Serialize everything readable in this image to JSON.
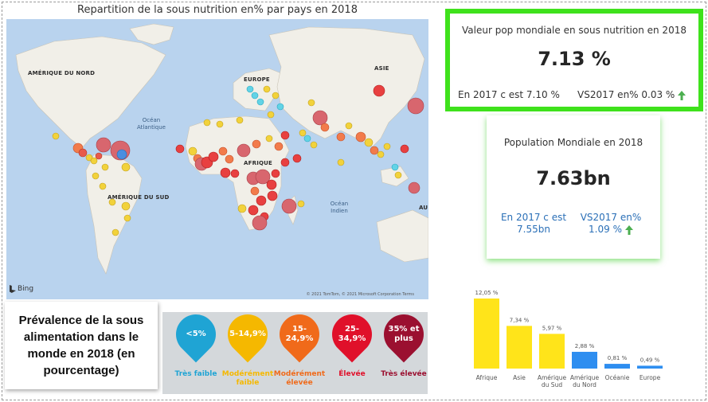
{
  "map": {
    "title": "Repartition de la sous nutrition en% par pays en 2018",
    "labels": {
      "north_america": "AMÉRIQUE DU NORD",
      "europe": "EUROPE",
      "asia": "ASIE",
      "africa": "AFRIQUE",
      "south_america": "AMÉRIQUE DU SUD",
      "atlantic": "Océan Atlantique",
      "indian": "Océan Indien",
      "au": "AU"
    },
    "bing": "Bing",
    "copyright": "© 2021 TomTom, © 2021 Microsoft Corporation Terms"
  },
  "legend": {
    "caption": "Prévalence de la sous alimentation dans le monde en 2018 (en pourcentage)",
    "items": [
      {
        "range": "<5%",
        "label": "Très faible",
        "color": "#1fa4d4"
      },
      {
        "range": "5-14,9%",
        "label": "Modérément faible",
        "color": "#f5b800"
      },
      {
        "range": "15-24,9%",
        "label": "Modérément élevée",
        "color": "#f06a1a"
      },
      {
        "range": "25-34,9%",
        "label": "Élevée",
        "color": "#e0102a"
      },
      {
        "range": "35% et plus",
        "label": "Très élevée",
        "color": "#9b1030"
      }
    ]
  },
  "kpi_undernutrition": {
    "title": "Valeur pop mondiale en sous nutrition en 2018",
    "value": "7.13 %",
    "prev": "En 2017 c est 7.10 %",
    "delta": "VS2017 en% 0.03 %",
    "border_color": "#3fe21c",
    "trend": "up"
  },
  "kpi_population": {
    "title": "Population Mondiale en 2018",
    "value": "7.63bn",
    "prev": "En 2017 c est 7.55bn",
    "delta": "VS2017 en% 1.09 %",
    "trend": "up"
  },
  "chart_data": {
    "type": "bar",
    "categories": [
      "Afrique",
      "Asie",
      "Amérique du Sud",
      "Amérique du Nord",
      "Océanie",
      "Europe"
    ],
    "values": [
      12.05,
      7.34,
      5.97,
      2.88,
      0.81,
      0.49
    ],
    "value_labels": [
      "12,05 %",
      "7,34 %",
      "5,97 %",
      "2,88 %",
      "0,81 %",
      "0,49 %"
    ],
    "colors": [
      "#ffe41a",
      "#ffe41a",
      "#ffe41a",
      "#2e8ef0",
      "#2e8ef0",
      "#2e8ef0"
    ],
    "title": "",
    "xlabel": "",
    "ylabel": "",
    "ylim": [
      0,
      12.05
    ],
    "grid": false
  }
}
